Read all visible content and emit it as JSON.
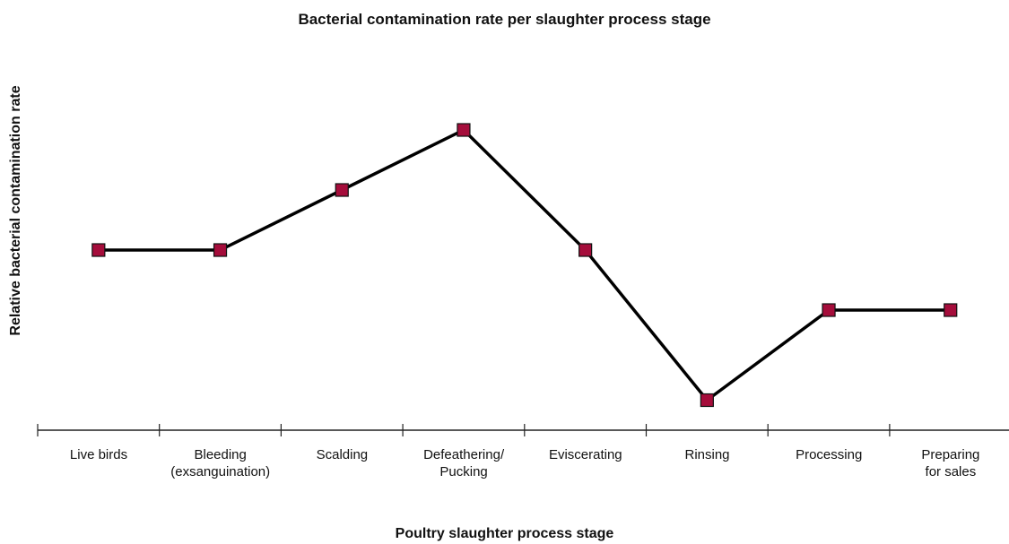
{
  "chart_data": {
    "type": "line",
    "title": "Bacterial contamination rate per slaughter process stage",
    "x_label": "Poultry slaughter process stage",
    "y_label": "Relative bacterial contamination rate",
    "categories": [
      "Live birds",
      "Bleeding\n(exsanguination)",
      "Scalding",
      "Defeathering/\nPucking",
      "Eviscerating",
      "Rinsing",
      "Processing",
      "Preparing\nfor sales"
    ],
    "series": [
      {
        "name": "Relative bacterial contamination rate",
        "color": "#a50d3b",
        "values": [
          6,
          6,
          8,
          10,
          6,
          1,
          4,
          4
        ]
      }
    ],
    "ylim": [
      0,
      12
    ]
  }
}
